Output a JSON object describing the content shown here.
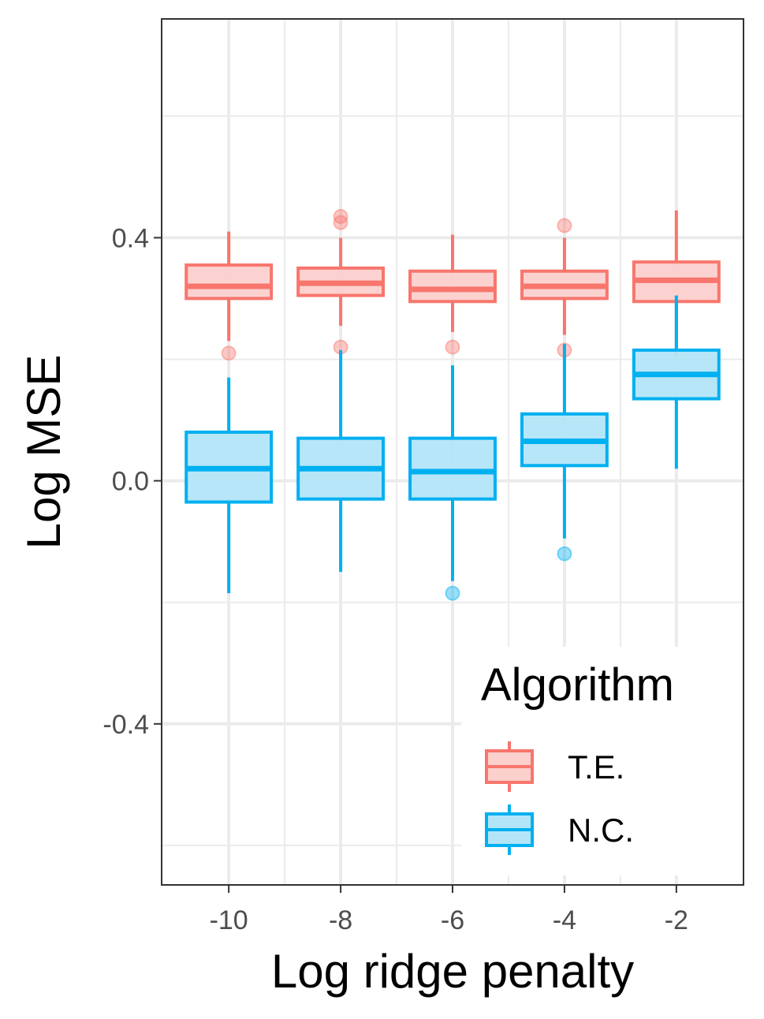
{
  "chart_data": {
    "type": "box",
    "xlabel": "Log ridge penalty",
    "ylabel": "Log MSE",
    "x_ticks": [
      "-10",
      "-8",
      "-6",
      "-4",
      "-2"
    ],
    "x_values": [
      -10,
      -8,
      -6,
      -4,
      -2
    ],
    "y_ticks": [
      "-0.4",
      "0.0",
      "0.4"
    ],
    "y_tick_values": [
      -0.4,
      0.0,
      0.4
    ],
    "ylim": [
      -0.665,
      0.76
    ],
    "xlim": [
      -11.2,
      -0.8
    ],
    "grid": true,
    "legend": {
      "title": "Algorithm",
      "position": "bottom-right",
      "entries": [
        "T.E.",
        "N.C."
      ]
    },
    "series": [
      {
        "name": "T.E.",
        "color": "#F8766D",
        "fill": "#FCD0CD",
        "boxes": [
          {
            "x": -10,
            "whisker_low": 0.23,
            "q1": 0.3,
            "median": 0.32,
            "q3": 0.355,
            "whisker_high": 0.41,
            "outliers": [
              0.21
            ]
          },
          {
            "x": -8,
            "whisker_low": 0.255,
            "q1": 0.305,
            "median": 0.325,
            "q3": 0.35,
            "whisker_high": 0.4,
            "outliers": [
              0.435,
              0.425,
              0.22
            ]
          },
          {
            "x": -6,
            "whisker_low": 0.245,
            "q1": 0.295,
            "median": 0.315,
            "q3": 0.345,
            "whisker_high": 0.405,
            "outliers": [
              0.22
            ]
          },
          {
            "x": -4,
            "whisker_low": 0.24,
            "q1": 0.3,
            "median": 0.32,
            "q3": 0.345,
            "whisker_high": 0.4,
            "outliers": [
              0.42,
              0.215
            ]
          },
          {
            "x": -2,
            "whisker_low": 0.205,
            "q1": 0.295,
            "median": 0.33,
            "q3": 0.36,
            "whisker_high": 0.445,
            "outliers": []
          }
        ]
      },
      {
        "name": "N.C.",
        "color": "#00B0F0",
        "fill": "#B3E5F9",
        "boxes": [
          {
            "x": -10,
            "whisker_low": -0.185,
            "q1": -0.035,
            "median": 0.02,
            "q3": 0.08,
            "whisker_high": 0.17,
            "outliers": []
          },
          {
            "x": -8,
            "whisker_low": -0.15,
            "q1": -0.03,
            "median": 0.02,
            "q3": 0.07,
            "whisker_high": 0.215,
            "outliers": []
          },
          {
            "x": -6,
            "whisker_low": -0.165,
            "q1": -0.03,
            "median": 0.015,
            "q3": 0.07,
            "whisker_high": 0.19,
            "outliers": [
              -0.185
            ]
          },
          {
            "x": -4,
            "whisker_low": -0.095,
            "q1": 0.025,
            "median": 0.065,
            "q3": 0.11,
            "whisker_high": 0.225,
            "outliers": [
              -0.12
            ]
          },
          {
            "x": -2,
            "whisker_low": 0.02,
            "q1": 0.135,
            "median": 0.175,
            "q3": 0.215,
            "whisker_high": 0.305,
            "outliers": []
          }
        ]
      }
    ]
  }
}
